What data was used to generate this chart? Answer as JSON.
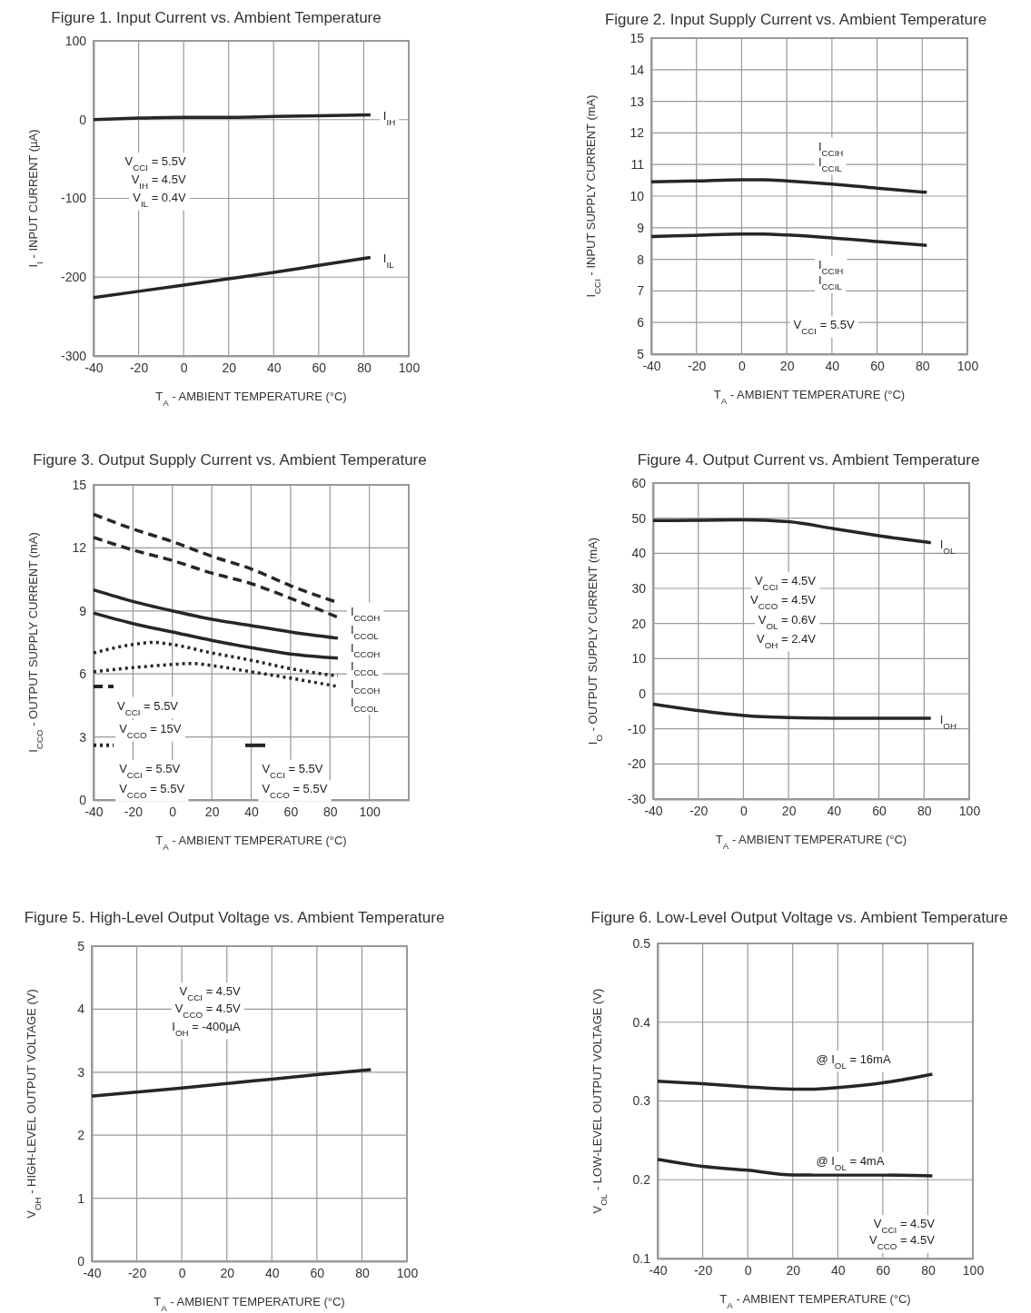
{
  "chart_data": [
    {
      "type": "line",
      "title": "Figure 1. Input Current vs. Ambient Temperature",
      "xlabel": "T$_{A}$ - AMBIENT TEMPERATURE (°C)",
      "ylabel": "I$_{I}$ - INPUT CURRENT (µA)",
      "xlim": [
        -40,
        100
      ],
      "xticks": [
        -40,
        -20,
        0,
        20,
        40,
        60,
        80,
        100
      ],
      "ylim": [
        -300,
        100
      ],
      "yticks": [
        -300,
        -200,
        -100,
        0,
        100
      ],
      "grid": true,
      "annotations": [
        "V$_{CCI}$ = 5.5V",
        "V$_{IH}$ = 4.5V",
        "V$_{IL}$ = 0.4V"
      ],
      "series": [
        {
          "name": "I$_{IH}$",
          "color": "#262626",
          "x": [
            -40,
            -20,
            0,
            20,
            40,
            60,
            83
          ],
          "values": [
            0,
            2,
            3,
            3,
            4,
            5,
            6
          ]
        },
        {
          "name": "I$_{IL}$",
          "color": "#262626",
          "x": [
            -40,
            0,
            20,
            40,
            60,
            83
          ],
          "values": [
            -226,
            -210,
            -202,
            -194,
            -185,
            -175
          ]
        }
      ]
    },
    {
      "type": "line",
      "title": "Figure 2. Input Supply Current vs. Ambient Temperature",
      "xlabel": "T$_{A}$ - AMBIENT TEMPERATURE (°C)",
      "ylabel": "I$_{CCI}$ - INPUT SUPPLY CURRENT (mA)",
      "xlim": [
        -40,
        100
      ],
      "xticks": [
        -40,
        -20,
        0,
        20,
        40,
        60,
        80,
        100
      ],
      "ylim": [
        5,
        15
      ],
      "yticks": [
        5,
        6,
        7,
        8,
        9,
        10,
        11,
        12,
        13,
        14,
        15
      ],
      "grid": true,
      "annotations": [
        "I$_{CCIH}$",
        "I$_{CCIL}$",
        "I$_{CCIH}$",
        "I$_{CCIL}$",
        "V$_{CCI}$ = 5.5V"
      ],
      "series": [
        {
          "color": "#262626",
          "x": [
            -40,
            -20,
            0,
            10,
            20,
            40,
            60,
            82
          ],
          "values": [
            10.45,
            10.48,
            10.52,
            10.52,
            10.48,
            10.38,
            10.25,
            10.12
          ]
        },
        {
          "color": "#262626",
          "x": [
            -40,
            -20,
            0,
            10,
            20,
            40,
            60,
            82
          ],
          "values": [
            8.72,
            8.76,
            8.8,
            8.8,
            8.77,
            8.68,
            8.56,
            8.44
          ]
        }
      ]
    },
    {
      "type": "line",
      "title": "Figure 3. Output Supply Current vs. Ambient Temperature",
      "xlabel": "T$_{A}$ - AMBIENT TEMPERATURE (°C)",
      "ylabel": "I$_{CCO}$ - OUTPUT SUPPLY CURRENT (mA)",
      "xlim": [
        -40,
        120
      ],
      "xticks": [
        -40,
        -20,
        0,
        20,
        40,
        60,
        80,
        100
      ],
      "ylim": [
        0,
        15
      ],
      "yticks": [
        0,
        3,
        6,
        9,
        12,
        15
      ],
      "grid": true,
      "annotations": [
        "V$_{CCI}$ = 5.5V",
        "V$_{CCO}$ = 15V",
        "V$_{CCI}$ = 5.5V",
        "V$_{CCO}$ = 5.5V",
        "V$_{CCI}$ = 5.5V",
        "V$_{CCO}$ = 5.5V"
      ],
      "series": [
        {
          "name": "I$_{CCOH}$",
          "color": "#262626",
          "line_style": "dashed",
          "x": [
            -40,
            -20,
            0,
            20,
            40,
            60,
            84
          ],
          "values": [
            13.6,
            12.9,
            12.3,
            11.6,
            11.0,
            10.2,
            9.4
          ]
        },
        {
          "name": "I$_{CCOL}$",
          "color": "#262626",
          "line_style": "dashed",
          "x": [
            -40,
            -20,
            0,
            20,
            40,
            60,
            84
          ],
          "values": [
            12.5,
            11.9,
            11.4,
            10.8,
            10.3,
            9.6,
            8.7
          ]
        },
        {
          "name": "I$_{CCOH}$",
          "color": "#262626",
          "line_style": "solid",
          "x": [
            -40,
            -20,
            0,
            20,
            40,
            60,
            84
          ],
          "values": [
            10.0,
            9.45,
            9.0,
            8.6,
            8.3,
            8.0,
            7.7
          ]
        },
        {
          "name": "I$_{CCOL}$",
          "color": "#262626",
          "line_style": "solid",
          "x": [
            -40,
            -20,
            0,
            20,
            40,
            60,
            84
          ],
          "values": [
            8.9,
            8.4,
            8.0,
            7.6,
            7.25,
            6.95,
            6.75
          ]
        },
        {
          "name": "I$_{CCOH}$",
          "color": "#262626",
          "line_style": "dotted",
          "x": [
            -40,
            -20,
            -10,
            0,
            20,
            40,
            60,
            84
          ],
          "values": [
            7.0,
            7.4,
            7.5,
            7.4,
            7.0,
            6.65,
            6.25,
            5.9
          ]
        },
        {
          "name": "I$_{CCOL}$",
          "color": "#262626",
          "line_style": "dotted",
          "x": [
            -40,
            -20,
            0,
            10,
            20,
            40,
            60,
            84
          ],
          "values": [
            6.1,
            6.3,
            6.45,
            6.5,
            6.4,
            6.1,
            5.8,
            5.4
          ]
        }
      ]
    },
    {
      "type": "line",
      "title": "Figure 4. Output Current vs. Ambient Temperature",
      "xlabel": "T$_{A}$ - AMBIENT TEMPERATURE (°C)",
      "ylabel": "I$_{O}$ - OUTPUT SUPPLY CURRENT (mA)",
      "xlim": [
        -40,
        100
      ],
      "xticks": [
        -40,
        -20,
        0,
        20,
        40,
        60,
        80,
        100
      ],
      "ylim": [
        -30,
        60
      ],
      "yticks": [
        -30,
        -20,
        -10,
        0,
        10,
        20,
        30,
        40,
        50,
        60
      ],
      "grid": true,
      "annotations": [
        "V$_{CCI}$ = 4.5V",
        "V$_{CCO}$ = 4.5V",
        "V$_{OL}$ = 0.6V",
        "V$_{OH}$ = 2.4V"
      ],
      "series": [
        {
          "name": "I$_{OL}$",
          "color": "#262626",
          "x": [
            -40,
            -20,
            0,
            20,
            40,
            60,
            83
          ],
          "values": [
            49.3,
            49.4,
            49.5,
            49,
            47,
            45,
            43
          ]
        },
        {
          "name": "I$_{OH}$",
          "color": "#262626",
          "x": [
            -40,
            -20,
            0,
            20,
            40,
            60,
            83
          ],
          "values": [
            -3,
            -4.8,
            -6.2,
            -6.8,
            -7,
            -7,
            -7
          ]
        }
      ]
    },
    {
      "type": "line",
      "title": "Figure 5. High-Level Output Voltage vs. Ambient Temperature",
      "xlabel": "T$_{A}$ - AMBIENT TEMPERATURE (°C)",
      "ylabel": "V$_{OH}$ - HIGH-LEVEL OUTPUT VOLTAGE (V)",
      "xlim": [
        -40,
        100
      ],
      "xticks": [
        -40,
        -20,
        0,
        20,
        40,
        60,
        80,
        100
      ],
      "ylim": [
        0,
        5
      ],
      "yticks": [
        0,
        1,
        2,
        3,
        4,
        5
      ],
      "grid": true,
      "annotations": [
        "V$_{CCI}$ = 4.5V",
        "V$_{CCO}$ = 4.5V",
        "I$_{OH}$ = -400µA"
      ],
      "series": [
        {
          "color": "#262626",
          "x": [
            -40,
            0,
            20,
            40,
            60,
            84
          ],
          "values": [
            2.62,
            2.75,
            2.82,
            2.89,
            2.96,
            3.04
          ]
        }
      ]
    },
    {
      "type": "line",
      "title": "Figure 6. Low-Level Output Voltage vs. Ambient Temperature",
      "xlabel": "T$_{A}$ - AMBIENT TEMPERATURE (°C)",
      "ylabel": "V$_{OL}$ - LOW-LEVEL OUTPUT VOLTAGE (V)",
      "xlim": [
        -40,
        100
      ],
      "xticks": [
        -40,
        -20,
        0,
        20,
        40,
        60,
        80,
        100
      ],
      "ylim": [
        0.1,
        0.5
      ],
      "yticks": [
        0.1,
        0.2,
        0.3,
        0.4,
        0.5
      ],
      "grid": true,
      "annotations": [
        "V$_{CCI}$ = 4.5V",
        "V$_{CCO}$ = 4.5V"
      ],
      "series": [
        {
          "name": "@ I$_{OL}$ = 16mA",
          "color": "#262626",
          "x": [
            -40,
            -20,
            0,
            20,
            30,
            40,
            60,
            82
          ],
          "values": [
            0.325,
            0.322,
            0.318,
            0.315,
            0.315,
            0.317,
            0.323,
            0.334
          ]
        },
        {
          "name": "@ I$_{OL}$ = 4mA",
          "color": "#262626",
          "x": [
            -40,
            -20,
            0,
            20,
            40,
            60,
            82
          ],
          "values": [
            0.226,
            0.217,
            0.212,
            0.206,
            0.206,
            0.206,
            0.205
          ]
        }
      ]
    }
  ]
}
